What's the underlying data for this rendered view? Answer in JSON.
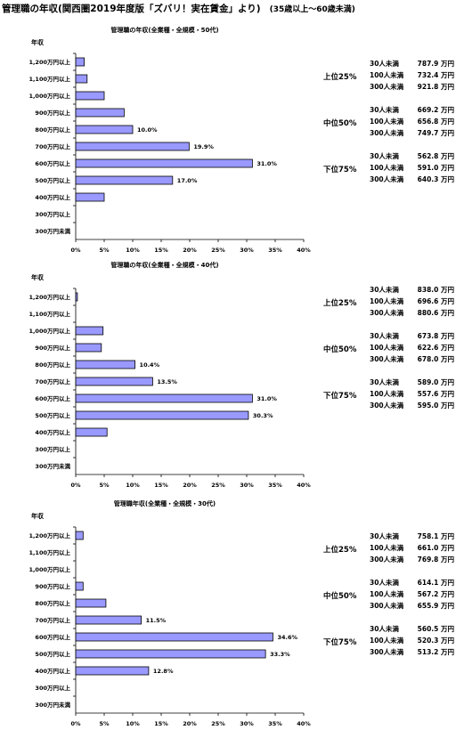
{
  "page": {
    "title": "管理職の年収(関西圏2019年度版「ズバリ！実在賃金」より)",
    "age_note": "(35歳以上～60歳未満)"
  },
  "chart_data": [
    {
      "type": "bar",
      "orientation": "horizontal",
      "title": "管理職の年収(全業種・全規模・50代)",
      "ylabel": "年収",
      "categories": [
        "1,200万円以上",
        "1,100万円以上",
        "1,000万円以上",
        "900万円以上",
        "800万円以上",
        "700万円以上",
        "600万円以上",
        "500万円以上",
        "400万円以上",
        "300万円以上",
        "300万円未満"
      ],
      "values": [
        1.5,
        2.0,
        5.0,
        8.5,
        10.0,
        19.9,
        31.0,
        17.0,
        5.0,
        0,
        0
      ],
      "data_labels": [
        "",
        "",
        "",
        "",
        "10.0%",
        "19.9%",
        "31.0%",
        "17.0%",
        "",
        "",
        ""
      ],
      "xlim": [
        0,
        40
      ],
      "x_ticks": [
        "0%",
        "5%",
        "10%",
        "15%",
        "20%",
        "25%",
        "30%",
        "35%",
        "40%"
      ],
      "bar_color": "#9999ff",
      "salary_tiers": [
        {
          "tier": "上位25%",
          "rows": [
            {
              "size": "30人未満",
              "amount": "787.9 万円"
            },
            {
              "size": "100人未満",
              "amount": "732.4 万円"
            },
            {
              "size": "300人未満",
              "amount": "921.8 万円"
            }
          ]
        },
        {
          "tier": "中位50%",
          "rows": [
            {
              "size": "30人未満",
              "amount": "669.2 万円"
            },
            {
              "size": "100人未満",
              "amount": "656.8 万円"
            },
            {
              "size": "300人未満",
              "amount": "749.7 万円"
            }
          ]
        },
        {
          "tier": "下位75%",
          "rows": [
            {
              "size": "30人未満",
              "amount": "562.8 万円"
            },
            {
              "size": "100人未満",
              "amount": "591.0 万円"
            },
            {
              "size": "300人未満",
              "amount": "640.3 万円"
            }
          ]
        }
      ]
    },
    {
      "type": "bar",
      "orientation": "horizontal",
      "title": "管理職の年収(全業種・全規模・40代)",
      "ylabel": "年収",
      "categories": [
        "1,200万円以上",
        "1,100万円以上",
        "1,000万円以上",
        "900万円以上",
        "800万円以上",
        "700万円以上",
        "600万円以上",
        "500万円以上",
        "400万円以上",
        "300万円以上",
        "300万円未満"
      ],
      "values": [
        0.3,
        0,
        4.8,
        4.5,
        10.4,
        13.5,
        31.0,
        30.3,
        5.5,
        0,
        0
      ],
      "data_labels": [
        "",
        "",
        "",
        "",
        "10.4%",
        "13.5%",
        "31.0%",
        "30.3%",
        "",
        "",
        ""
      ],
      "xlim": [
        0,
        40
      ],
      "x_ticks": [
        "0%",
        "5%",
        "10%",
        "15%",
        "20%",
        "25%",
        "30%",
        "35%",
        "40%"
      ],
      "bar_color": "#9999ff",
      "salary_tiers": [
        {
          "tier": "上位25%",
          "rows": [
            {
              "size": "30人未満",
              "amount": "838.0 万円"
            },
            {
              "size": "100人未満",
              "amount": "696.6 万円"
            },
            {
              "size": "300人未満",
              "amount": "880.6 万円"
            }
          ]
        },
        {
          "tier": "中位50%",
          "rows": [
            {
              "size": "30人未満",
              "amount": "673.8 万円"
            },
            {
              "size": "100人未満",
              "amount": "622.6 万円"
            },
            {
              "size": "300人未満",
              "amount": "678.0 万円"
            }
          ]
        },
        {
          "tier": "下位75%",
          "rows": [
            {
              "size": "30人未満",
              "amount": "589.0 万円"
            },
            {
              "size": "100人未満",
              "amount": "557.6 万円"
            },
            {
              "size": "300人未満",
              "amount": "595.0 万円"
            }
          ]
        }
      ]
    },
    {
      "type": "bar",
      "orientation": "horizontal",
      "title": "管理職年収(全業種・全規模・30代)",
      "ylabel": "年収",
      "categories": [
        "1,200万円以上",
        "1,100万円以上",
        "1,000万円以上",
        "900万円以上",
        "800万円以上",
        "700万円以上",
        "600万円以上",
        "500万円以上",
        "400万円以上",
        "300万円以上",
        "300万円未満"
      ],
      "values": [
        1.3,
        0,
        0,
        1.3,
        5.3,
        11.5,
        34.6,
        33.3,
        12.8,
        0,
        0
      ],
      "data_labels": [
        "",
        "",
        "",
        "",
        "",
        "11.5%",
        "34.6%",
        "33.3%",
        "12.8%",
        "",
        ""
      ],
      "xlim": [
        0,
        40
      ],
      "x_ticks": [
        "0%",
        "5%",
        "10%",
        "15%",
        "20%",
        "25%",
        "30%",
        "35%",
        "40%"
      ],
      "bar_color": "#9999ff",
      "salary_tiers": [
        {
          "tier": "上位25%",
          "rows": [
            {
              "size": "30人未満",
              "amount": "758.1 万円"
            },
            {
              "size": "100人未満",
              "amount": "661.0 万円"
            },
            {
              "size": "300人未満",
              "amount": "769.8 万円"
            }
          ]
        },
        {
          "tier": "中位50%",
          "rows": [
            {
              "size": "30人未満",
              "amount": "614.1 万円"
            },
            {
              "size": "100人未満",
              "amount": "567.2 万円"
            },
            {
              "size": "300人未満",
              "amount": "655.9 万円"
            }
          ]
        },
        {
          "tier": "下位75%",
          "rows": [
            {
              "size": "30人未満",
              "amount": "560.5 万円"
            },
            {
              "size": "100人未満",
              "amount": "520.3 万円"
            },
            {
              "size": "300人未満",
              "amount": "513.2 万円"
            }
          ]
        }
      ]
    }
  ]
}
